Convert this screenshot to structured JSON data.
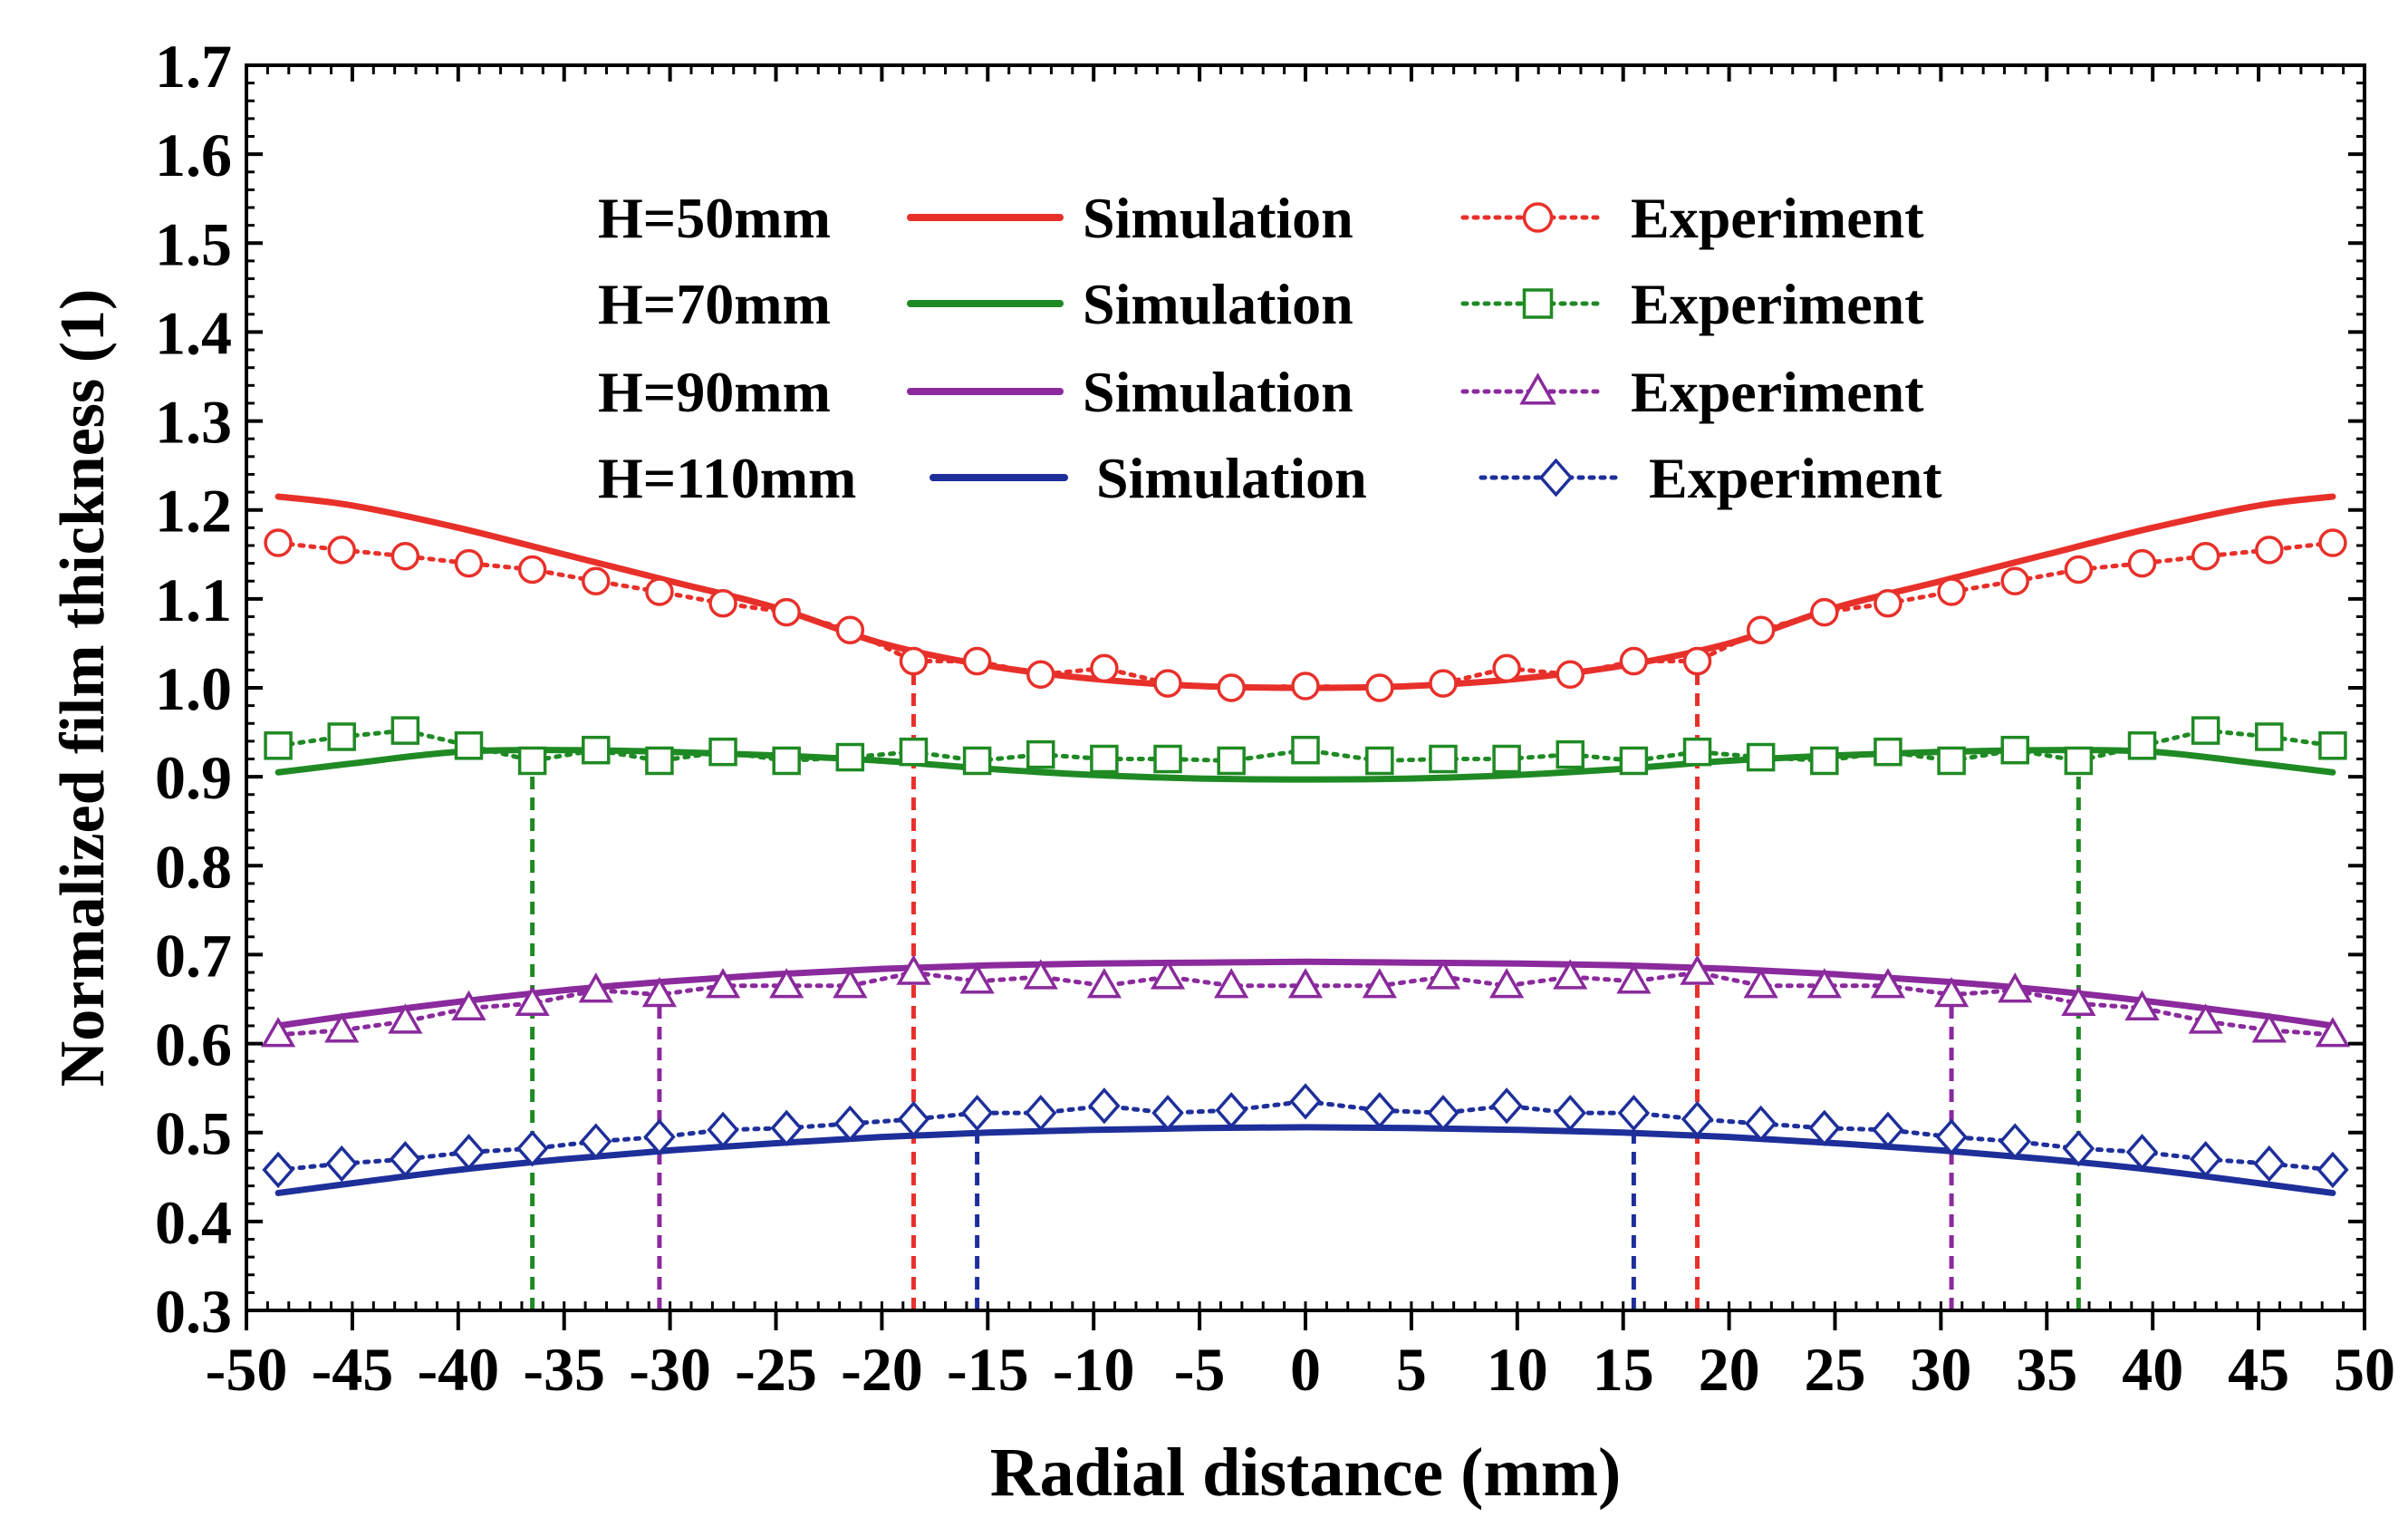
{
  "chart_data": {
    "type": "line",
    "title": "",
    "xlabel": "Radial distance (mm)",
    "ylabel": "Normalized film thickness (1)",
    "xlim": [
      -50,
      50
    ],
    "ylim": [
      0.3,
      1.7
    ],
    "xticks": [
      "-50",
      "-45",
      "-40",
      "-35",
      "-30",
      "-25",
      "-20",
      "-15",
      "-10",
      "-5",
      "0",
      "5",
      "10",
      "15",
      "20",
      "25",
      "30",
      "35",
      "40",
      "45",
      "50"
    ],
    "yticks": [
      "0.3",
      "0.4",
      "0.5",
      "0.6",
      "0.7",
      "0.8",
      "0.9",
      "1.0",
      "1.1",
      "1.2",
      "1.3",
      "1.4",
      "1.5",
      "1.6",
      "1.7"
    ],
    "legend": [
      {
        "group": "H=50mm",
        "sim_label": "Simulation",
        "exp_label": "Experiment",
        "color": "#e8302a",
        "marker": "circle"
      },
      {
        "group": "H=70mm",
        "sim_label": "Simulation",
        "exp_label": "Experiment",
        "color": "#1f8a24",
        "marker": "square"
      },
      {
        "group": "H=90mm",
        "sim_label": "Simulation",
        "exp_label": "Experiment",
        "color": "#8a2a9c",
        "marker": "triangle"
      },
      {
        "group": "H=110mm",
        "sim_label": "Simulation",
        "exp_label": "Experiment",
        "color": "#1e2f9a",
        "marker": "diamond"
      }
    ],
    "experiment_x": [
      -48.5,
      -45.5,
      -42.5,
      -39.5,
      -36.5,
      -33.5,
      -30.5,
      -27.5,
      -24.5,
      -21.5,
      -18.5,
      -15.5,
      -12.5,
      -9.5,
      -6.5,
      -3.5,
      0,
      3.5,
      6.5,
      9.5,
      12.5,
      15.5,
      18.5,
      21.5,
      24.5,
      27.5,
      30.5,
      33.5,
      36.5,
      39.5,
      42.5,
      45.5,
      48.5
    ],
    "series": [
      {
        "name": "H=50mm Simulation",
        "kind": "simulation",
        "color": "#e8302a",
        "x": [
          -48.5,
          -45,
          -40,
          -35,
          -30,
          -25,
          -20,
          -15,
          -10,
          -5,
          0,
          5,
          10,
          15,
          20,
          25,
          30,
          35,
          40,
          45,
          48.5
        ],
        "values": [
          1.215,
          1.205,
          1.18,
          1.15,
          1.12,
          1.09,
          1.05,
          1.025,
          1.01,
          1.002,
          1.0,
          1.002,
          1.01,
          1.025,
          1.05,
          1.09,
          1.12,
          1.15,
          1.18,
          1.205,
          1.215
        ]
      },
      {
        "name": "H=50mm Experiment",
        "kind": "experiment",
        "color": "#e8302a",
        "marker": "circle",
        "values": [
          1.163,
          1.155,
          1.148,
          1.14,
          1.133,
          1.12,
          1.108,
          1.095,
          1.085,
          1.065,
          1.03,
          1.03,
          1.015,
          1.022,
          1.005,
          1.0,
          1.002,
          1.0,
          1.005,
          1.022,
          1.015,
          1.03,
          1.03,
          1.065,
          1.085,
          1.095,
          1.108,
          1.12,
          1.133,
          1.14,
          1.148,
          1.155,
          1.163
        ]
      },
      {
        "name": "H=70mm Simulation",
        "kind": "simulation",
        "color": "#1f8a24",
        "x": [
          -48.5,
          -45,
          -40,
          -35,
          -30,
          -25,
          -20,
          -15,
          -10,
          -5,
          0,
          5,
          10,
          15,
          20,
          25,
          30,
          35,
          40,
          45,
          48.5
        ],
        "values": [
          0.905,
          0.915,
          0.928,
          0.93,
          0.928,
          0.924,
          0.918,
          0.909,
          0.902,
          0.898,
          0.897,
          0.898,
          0.902,
          0.909,
          0.918,
          0.924,
          0.928,
          0.93,
          0.928,
          0.915,
          0.905
        ]
      },
      {
        "name": "H=70mm Experiment",
        "kind": "experiment",
        "color": "#1f8a24",
        "marker": "square",
        "values": [
          0.935,
          0.945,
          0.952,
          0.935,
          0.918,
          0.93,
          0.918,
          0.928,
          0.918,
          0.922,
          0.928,
          0.918,
          0.925,
          0.92,
          0.92,
          0.918,
          0.93,
          0.918,
          0.92,
          0.92,
          0.925,
          0.918,
          0.928,
          0.922,
          0.918,
          0.928,
          0.918,
          0.93,
          0.918,
          0.935,
          0.952,
          0.945,
          0.935
        ]
      },
      {
        "name": "H=90mm Simulation",
        "kind": "simulation",
        "color": "#8a2a9c",
        "x": [
          -48.5,
          -45,
          -40,
          -35,
          -30,
          -25,
          -20,
          -15,
          -10,
          -5,
          0,
          5,
          10,
          15,
          20,
          25,
          30,
          35,
          40,
          45,
          48.5
        ],
        "values": [
          0.62,
          0.632,
          0.647,
          0.66,
          0.67,
          0.678,
          0.684,
          0.688,
          0.69,
          0.691,
          0.692,
          0.691,
          0.69,
          0.688,
          0.684,
          0.678,
          0.67,
          0.66,
          0.647,
          0.632,
          0.62
        ]
      },
      {
        "name": "H=90mm Experiment",
        "kind": "experiment",
        "color": "#8a2a9c",
        "marker": "triangle",
        "values": [
          0.61,
          0.615,
          0.625,
          0.64,
          0.645,
          0.66,
          0.655,
          0.665,
          0.665,
          0.665,
          0.68,
          0.67,
          0.675,
          0.665,
          0.675,
          0.665,
          0.665,
          0.665,
          0.675,
          0.665,
          0.675,
          0.67,
          0.68,
          0.665,
          0.665,
          0.665,
          0.655,
          0.66,
          0.645,
          0.64,
          0.625,
          0.615,
          0.61
        ]
      },
      {
        "name": "H=110mm Simulation",
        "kind": "simulation",
        "color": "#1e2f9a",
        "x": [
          -48.5,
          -45,
          -40,
          -35,
          -30,
          -25,
          -20,
          -15,
          -10,
          -5,
          0,
          5,
          10,
          15,
          20,
          25,
          30,
          35,
          40,
          45,
          48.5
        ],
        "values": [
          0.432,
          0.443,
          0.458,
          0.47,
          0.48,
          0.488,
          0.495,
          0.5,
          0.503,
          0.505,
          0.506,
          0.505,
          0.503,
          0.5,
          0.495,
          0.488,
          0.48,
          0.47,
          0.458,
          0.443,
          0.432
        ]
      },
      {
        "name": "H=110mm Experiment",
        "kind": "experiment",
        "color": "#1e2f9a",
        "marker": "diamond",
        "values": [
          0.458,
          0.465,
          0.47,
          0.478,
          0.482,
          0.49,
          0.495,
          0.503,
          0.505,
          0.51,
          0.515,
          0.522,
          0.522,
          0.53,
          0.522,
          0.525,
          0.535,
          0.525,
          0.522,
          0.53,
          0.522,
          0.522,
          0.515,
          0.51,
          0.505,
          0.503,
          0.495,
          0.49,
          0.482,
          0.478,
          0.47,
          0.465,
          0.458
        ]
      }
    ],
    "annotations": [
      {
        "type": "vline",
        "x": -18.5,
        "color": "#e8302a",
        "from": 0.3,
        "to": 1.03
      },
      {
        "type": "vline",
        "x": 18.5,
        "color": "#e8302a",
        "from": 0.3,
        "to": 1.03
      },
      {
        "type": "vline",
        "x": -36.5,
        "color": "#1f8a24",
        "from": 0.3,
        "to": 0.918
      },
      {
        "type": "vline",
        "x": 36.5,
        "color": "#1f8a24",
        "from": 0.3,
        "to": 0.918
      },
      {
        "type": "vline",
        "x": -30.5,
        "color": "#8a2a9c",
        "from": 0.3,
        "to": 0.655
      },
      {
        "type": "vline",
        "x": 30.5,
        "color": "#8a2a9c",
        "from": 0.3,
        "to": 0.655
      },
      {
        "type": "vline",
        "x": -15.5,
        "color": "#1e2f9a",
        "from": 0.3,
        "to": 0.5
      },
      {
        "type": "vline",
        "x": 15.5,
        "color": "#1e2f9a",
        "from": 0.3,
        "to": 0.5
      }
    ]
  }
}
